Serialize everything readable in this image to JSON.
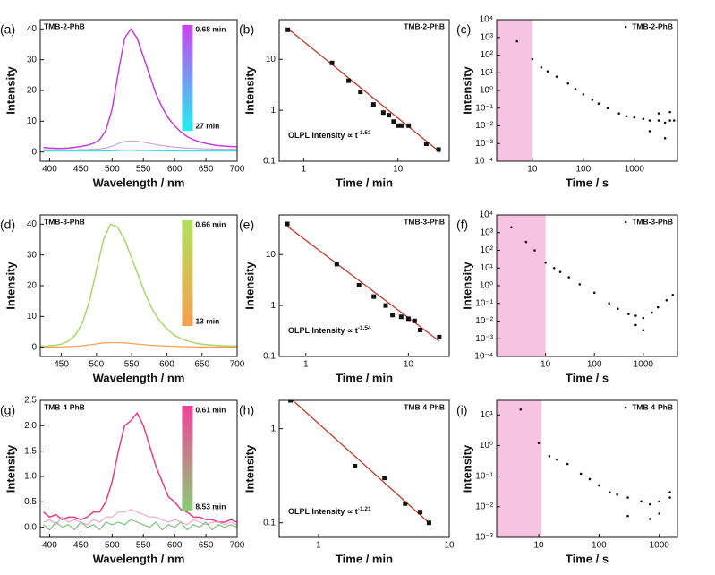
{
  "chart_data": [
    {
      "type": "line",
      "panel": "(a)",
      "tag": "TMB-2-PhB",
      "tag_position": "left",
      "xlabel": "Wavelength / nm",
      "ylabel": "Intensity",
      "x": [
        390,
        400,
        410,
        420,
        430,
        440,
        450,
        460,
        470,
        480,
        490,
        500,
        510,
        520,
        530,
        540,
        550,
        560,
        570,
        580,
        590,
        600,
        610,
        620,
        630,
        640,
        650,
        660,
        670,
        680,
        690,
        700
      ],
      "series": [
        {
          "color": "#c23fd6",
          "values": [
            1.5,
            1.3,
            1.2,
            1.2,
            1.3,
            1.5,
            1.8,
            2.2,
            2.8,
            4,
            7,
            14,
            26,
            37,
            40,
            37,
            31,
            25,
            19,
            14.5,
            11,
            8.5,
            6.5,
            5,
            4,
            3.3,
            2.8,
            2.4,
            2.1,
            1.9,
            1.8,
            1.7
          ]
        },
        {
          "color": "#c9a6de",
          "values": [
            0.8,
            0.7,
            0.7,
            0.7,
            0.7,
            0.7,
            0.8,
            0.8,
            0.9,
            1.0,
            1.3,
            1.9,
            2.8,
            3.4,
            3.6,
            3.5,
            3.2,
            2.8,
            2.4,
            2.1,
            1.8,
            1.6,
            1.4,
            1.3,
            1.2,
            1.1,
            1.0,
            1.0,
            0.9,
            0.9,
            0.9,
            0.9
          ]
        },
        {
          "color": "#33d6e0",
          "values": [
            0.3,
            0.3,
            0.3,
            0.3,
            0.3,
            0.3,
            0.3,
            0.3,
            0.3,
            0.3,
            0.35,
            0.4,
            0.5,
            0.55,
            0.55,
            0.5,
            0.5,
            0.45,
            0.4,
            0.4,
            0.35,
            0.35,
            0.3,
            0.3,
            0.3,
            0.3,
            0.3,
            0.3,
            0.3,
            0.3,
            0.3,
            0.3
          ]
        }
      ],
      "xlim": [
        385,
        700
      ],
      "xticks": [
        400,
        450,
        500,
        550,
        600,
        650,
        700
      ],
      "ylim": [
        -3,
        43
      ],
      "yticks": [
        0,
        10,
        20,
        30,
        40
      ],
      "colorbar": {
        "colors": [
          "#cc44ee",
          "#22eeee"
        ],
        "top_label": "0.68 min",
        "bottom_label": "27 min"
      }
    },
    {
      "type": "scatter",
      "panel": "(b)",
      "tag": "TMB-2-PhB",
      "tag_position": "right",
      "marker": "square",
      "xlabel": "Time / min",
      "ylabel": "Intensity",
      "xlog": true,
      "ylog": true,
      "series": [
        {
          "color": "#111111",
          "x": [
            0.68,
            2,
            3,
            4,
            5.5,
            7,
            8,
            9,
            10,
            11,
            13,
            20,
            27
          ],
          "values": [
            38,
            8.5,
            3.8,
            2.3,
            1.3,
            0.9,
            0.8,
            0.6,
            0.5,
            0.5,
            0.5,
            0.22,
            0.17
          ]
        }
      ],
      "fit": {
        "color": "#c0392b",
        "x": [
          0.68,
          28
        ],
        "values": [
          40,
          0.15
        ]
      },
      "annotation": "OLPL Intensity ∝ t",
      "annotation_exponent": "-1.53",
      "xlim": [
        0.55,
        35
      ],
      "xticks": [
        1,
        10
      ],
      "ylim": [
        0.1,
        60
      ],
      "yticks": [
        0.1,
        1,
        10
      ]
    },
    {
      "type": "scatter",
      "panel": "(c)",
      "marker": "dot",
      "legend": "upper right",
      "xlabel": "Time / s",
      "ylabel": "Intensity",
      "xlog": true,
      "ylog": true,
      "series": [
        {
          "name": "TMB-2-PhB",
          "color": "#111111",
          "x": [
            5,
            10,
            15,
            20,
            30,
            50,
            70,
            100,
            150,
            200,
            300,
            500,
            700,
            1000,
            1500,
            2000,
            3000,
            4000,
            5000,
            6000,
            2000,
            3000,
            4000,
            5000
          ],
          "values": [
            600,
            60,
            20,
            12,
            6,
            2.5,
            1.2,
            0.6,
            0.3,
            0.18,
            0.1,
            0.05,
            0.035,
            0.03,
            0.025,
            0.02,
            0.02,
            0.015,
            0.02,
            0.02,
            0.005,
            0.05,
            0.002,
            0.06
          ]
        }
      ],
      "shade": [
        2,
        10
      ],
      "shade_color": "#f7c3e3",
      "xlim": [
        2,
        7000
      ],
      "xticks": [
        10,
        100,
        1000
      ],
      "ylim": [
        0.0001,
        10000
      ],
      "yticks": [
        {
          "value": 0.0001,
          "label": "10⁻⁴"
        },
        {
          "value": 0.001,
          "label": "10⁻³"
        },
        {
          "value": 0.01,
          "label": "10⁻²"
        },
        {
          "value": 0.1,
          "label": "10⁻¹"
        },
        {
          "value": 1,
          "label": "10⁰"
        },
        {
          "value": 10,
          "label": "10¹"
        },
        {
          "value": 100,
          "label": "10²"
        },
        {
          "value": 1000,
          "label": "10³"
        },
        {
          "value": 10000,
          "label": "10⁴"
        }
      ]
    },
    {
      "type": "line",
      "panel": "(d)",
      "tag": "TMB-3-PhB",
      "tag_position": "left",
      "xlabel": "Wavelength / nm",
      "ylabel": "Intensity",
      "x": [
        420,
        430,
        440,
        450,
        460,
        470,
        480,
        490,
        500,
        510,
        520,
        530,
        540,
        550,
        560,
        570,
        580,
        590,
        600,
        610,
        620,
        630,
        640,
        650,
        660,
        670,
        680,
        690,
        700
      ],
      "series": [
        {
          "color": "#a8d86a",
          "values": [
            0.3,
            0.4,
            0.6,
            1,
            2,
            4,
            8,
            15,
            25,
            35,
            40,
            39,
            35,
            29,
            23,
            17,
            12,
            8.5,
            6,
            4,
            2.8,
            2,
            1.4,
            1,
            0.8,
            0.6,
            0.5,
            0.4,
            0.4
          ]
        },
        {
          "color": "#f0a050",
          "values": [
            0.1,
            0.1,
            0.1,
            0.1,
            0.2,
            0.3,
            0.5,
            0.8,
            1.1,
            1.4,
            1.5,
            1.5,
            1.4,
            1.2,
            1.0,
            0.8,
            0.6,
            0.5,
            0.4,
            0.3,
            0.2,
            0.2,
            0.1,
            0.1,
            0.1,
            0.1,
            0.1,
            0.1,
            0.1
          ]
        }
      ],
      "xlim": [
        420,
        700
      ],
      "xticks": [
        450,
        500,
        550,
        600,
        650,
        700
      ],
      "ylim": [
        -3,
        43
      ],
      "yticks": [
        0,
        10,
        20,
        30,
        40
      ],
      "colorbar": {
        "colors": [
          "#b0e060",
          "#f5a050"
        ],
        "top_label": "0.66 min",
        "bottom_label": "13 min"
      }
    },
    {
      "type": "scatter",
      "panel": "(e)",
      "tag": "TMB-3-PhB",
      "tag_position": "right",
      "marker": "square",
      "xlabel": "Time / min",
      "ylabel": "Intensity",
      "xlog": true,
      "ylog": true,
      "series": [
        {
          "color": "#111111",
          "x": [
            0.66,
            2,
            3.3,
            4.6,
            6,
            7,
            8.5,
            10,
            11.5,
            13,
            20
          ],
          "values": [
            40,
            6.5,
            2.5,
            1.5,
            1,
            0.65,
            0.6,
            0.55,
            0.5,
            0.33,
            0.24
          ]
        }
      ],
      "fit": {
        "color": "#c0392b",
        "x": [
          0.66,
          20
        ],
        "values": [
          36,
          0.2
        ]
      },
      "annotation": "OLPL Intensity ∝ t",
      "annotation_exponent": "-1.54",
      "xlim": [
        0.55,
        25
      ],
      "xticks": [
        1,
        10
      ],
      "ylim": [
        0.1,
        60
      ],
      "yticks": [
        0.1,
        1,
        10
      ]
    },
    {
      "type": "scatter",
      "panel": "(f)",
      "marker": "dot",
      "legend": "upper right",
      "xlabel": "Time / s",
      "ylabel": "Intensity",
      "xlog": true,
      "ylog": true,
      "series": [
        {
          "name": "TMB-3-PhB",
          "color": "#111111",
          "x": [
            2,
            4,
            6,
            10,
            15,
            20,
            30,
            50,
            100,
            200,
            300,
            500,
            700,
            1000,
            1500,
            2000,
            3000,
            4000,
            1000,
            700
          ],
          "values": [
            2000,
            300,
            100,
            20,
            10,
            6,
            3,
            1.2,
            0.4,
            0.1,
            0.05,
            0.025,
            0.02,
            0.015,
            0.03,
            0.06,
            0.15,
            0.3,
            0.003,
            0.006
          ]
        }
      ],
      "shade": [
        1,
        10
      ],
      "shade_color": "#f7c3e3",
      "xlim": [
        1,
        5000
      ],
      "xticks": [
        10,
        100,
        1000
      ],
      "ylim": [
        0.0001,
        10000
      ],
      "yticks": [
        {
          "value": 0.0001,
          "label": "10⁻⁴"
        },
        {
          "value": 0.001,
          "label": "10⁻³"
        },
        {
          "value": 0.01,
          "label": "10⁻²"
        },
        {
          "value": 0.1,
          "label": "10⁻¹"
        },
        {
          "value": 1,
          "label": "10⁰"
        },
        {
          "value": 10,
          "label": "10¹"
        },
        {
          "value": 100,
          "label": "10²"
        },
        {
          "value": 1000,
          "label": "10³"
        },
        {
          "value": 10000,
          "label": "10⁴"
        }
      ]
    },
    {
      "type": "line",
      "panel": "(g)",
      "tag": "TMB-4-PhB",
      "tag_position": "left",
      "xlabel": "Wavelength / nm",
      "ylabel": "Intensity",
      "x": [
        390,
        400,
        410,
        420,
        430,
        440,
        450,
        460,
        470,
        480,
        490,
        500,
        510,
        520,
        530,
        540,
        550,
        560,
        570,
        580,
        590,
        600,
        610,
        620,
        630,
        640,
        650,
        660,
        670,
        680,
        690,
        700
      ],
      "series": [
        {
          "color": "#e0408a",
          "values": [
            0.3,
            0.2,
            0.25,
            0.15,
            0.2,
            0.2,
            0.15,
            0.2,
            0.3,
            0.3,
            0.5,
            0.9,
            1.5,
            2.0,
            2.1,
            2.25,
            2.0,
            1.6,
            1.2,
            0.9,
            0.6,
            0.5,
            0.35,
            0.3,
            0.2,
            0.2,
            0.15,
            0.15,
            0.1,
            0.1,
            0.15,
            0.1
          ]
        },
        {
          "color": "#f0a8c8",
          "values": [
            0.1,
            0.15,
            0.05,
            0.2,
            0.1,
            0.15,
            0.1,
            0.05,
            0.15,
            0.1,
            0.2,
            0.2,
            0.3,
            0.3,
            0.35,
            0.3,
            0.25,
            0.2,
            0.2,
            0.15,
            0.1,
            0.15,
            0.1,
            0.05,
            0.15,
            0.1,
            0.05,
            0.1,
            0.1,
            0.05,
            0.1,
            0.05
          ]
        },
        {
          "color": "#80c080",
          "values": [
            0.05,
            -0.05,
            0.1,
            0,
            0.05,
            -0.05,
            0.1,
            0,
            0.05,
            -0.05,
            0.1,
            0.05,
            0.1,
            0.05,
            0.15,
            0.1,
            0.05,
            0,
            0.1,
            -0.05,
            0.05,
            0,
            0.1,
            -0.05,
            0.05,
            0,
            0.1,
            -0.05,
            0.05,
            0,
            0.05,
            0
          ]
        }
      ],
      "xlim": [
        385,
        700
      ],
      "xticks": [
        400,
        450,
        500,
        550,
        600,
        650,
        700
      ],
      "ylim": [
        -0.2,
        2.5
      ],
      "yticks": [
        {
          "value": 0,
          "label": "0.0"
        },
        0.5,
        {
          "value": 1,
          "label": "1.0"
        },
        1.5,
        {
          "value": 2,
          "label": "2.0"
        },
        2.5
      ],
      "colorbar": {
        "colors": [
          "#ee4499",
          "#88cc77"
        ],
        "top_label": "0.61 min",
        "bottom_label": "8.53 min"
      }
    },
    {
      "type": "scatter",
      "panel": "(h)",
      "tag": "TMB-4-PhB",
      "tag_position": "right",
      "marker": "square",
      "xlabel": "Time / min",
      "ylabel": "Intensity",
      "xlog": true,
      "ylog": true,
      "series": [
        {
          "color": "#111111",
          "x": [
            0.61,
            1.9,
            3.2,
            4.6,
            6,
            7
          ],
          "values": [
            2.0,
            0.4,
            0.3,
            0.16,
            0.13,
            0.1
          ]
        }
      ],
      "fit": {
        "color": "#c0392b",
        "x": [
          0.61,
          7
        ],
        "values": [
          2.1,
          0.1
        ]
      },
      "annotation": "OLPL Intensity ∝ t",
      "annotation_exponent": "-1.21",
      "xlim": [
        0.5,
        10
      ],
      "xticks": [
        1,
        10
      ],
      "ylim": [
        0.07,
        2
      ],
      "yticks": [
        0.1,
        1
      ]
    },
    {
      "type": "scatter",
      "panel": "(i)",
      "marker": "dot",
      "legend": "upper right",
      "xlabel": "Time / s",
      "ylabel": "Intensity",
      "xlog": true,
      "ylog": true,
      "series": [
        {
          "name": "TMB-4-PhB",
          "color": "#111111",
          "x": [
            5,
            10,
            15,
            20,
            30,
            50,
            70,
            100,
            150,
            200,
            300,
            500,
            700,
            1000,
            1500,
            300,
            700,
            1000,
            1500
          ],
          "values": [
            15,
            1.2,
            0.45,
            0.35,
            0.25,
            0.12,
            0.08,
            0.05,
            0.03,
            0.025,
            0.02,
            0.015,
            0.012,
            0.015,
            0.02,
            0.005,
            0.004,
            0.006,
            0.03
          ]
        }
      ],
      "shade": [
        2,
        11
      ],
      "shade_color": "#f7c3e3",
      "xlim": [
        2,
        2000
      ],
      "xticks": [
        10,
        100,
        1000
      ],
      "ylim": [
        0.001,
        30
      ],
      "yticks": [
        {
          "value": 0.001,
          "label": "10⁻³"
        },
        {
          "value": 0.01,
          "label": "10⁻²"
        },
        {
          "value": 0.1,
          "label": "10⁻¹"
        },
        {
          "value": 1,
          "label": "10⁰"
        },
        {
          "value": 10,
          "label": "10¹"
        }
      ]
    }
  ]
}
